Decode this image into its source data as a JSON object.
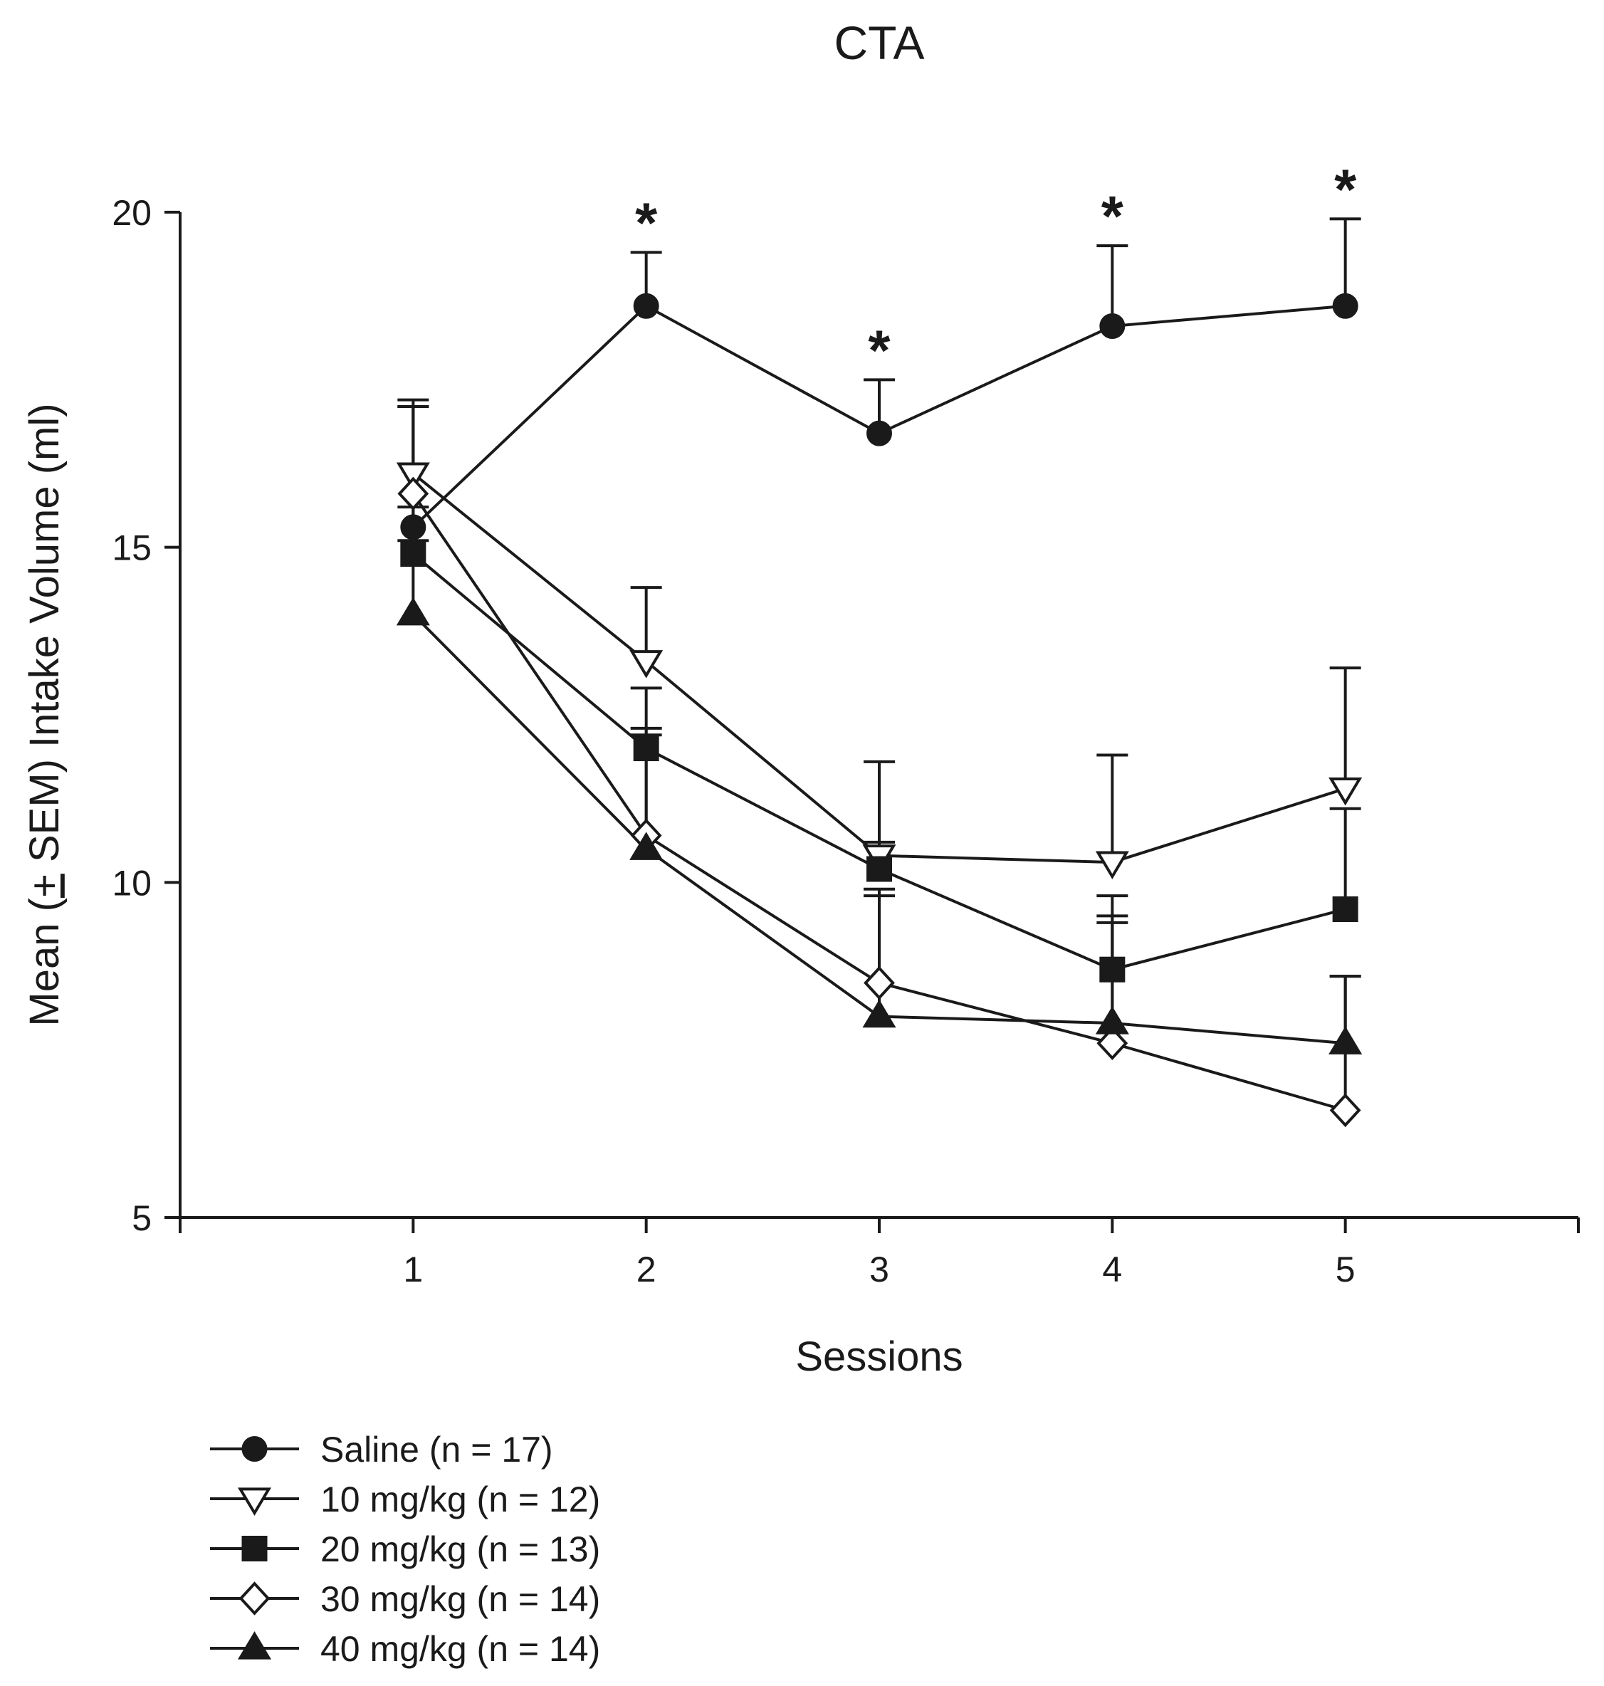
{
  "chart_data": {
    "type": "line",
    "title": "CTA",
    "xlabel": "Sessions",
    "ylabel_parts": [
      "Mean (",
      "+",
      " SEM) Intake Volume (ml)"
    ],
    "x": [
      1,
      2,
      3,
      4,
      5
    ],
    "x_ticks": [
      "1",
      "2",
      "3",
      "4",
      "5"
    ],
    "xlim": [
      0,
      6
    ],
    "y_ticks": [
      "5",
      "10",
      "15",
      "20"
    ],
    "ylim": [
      5,
      20
    ],
    "grid": false,
    "legend_position": "bottom-left",
    "series": [
      {
        "name": "Saline (n = 17)",
        "marker": "circle",
        "filled": true,
        "values": [
          15.3,
          18.6,
          16.7,
          18.3,
          18.6
        ],
        "sem": [
          1.8,
          0.8,
          0.8,
          1.2,
          1.3
        ]
      },
      {
        "name": "10 mg/kg (n = 12)",
        "marker": "triangle-down",
        "filled": false,
        "values": [
          16.1,
          13.3,
          10.4,
          10.3,
          11.4
        ],
        "sem": [
          1.1,
          1.1,
          1.4,
          1.6,
          1.8
        ]
      },
      {
        "name": "20 mg/kg (n = 13)",
        "marker": "square",
        "filled": true,
        "values": [
          14.9,
          12.0,
          10.2,
          8.7,
          9.6
        ],
        "sem": [
          0.7,
          0.9,
          0.4,
          1.1,
          1.5
        ]
      },
      {
        "name": "30 mg/kg (n = 14)",
        "marker": "diamond",
        "filled": false,
        "values": [
          15.8,
          10.7,
          8.5,
          7.6,
          6.6
        ],
        "sem": [
          1.3,
          1.5,
          1.3,
          1.8,
          2.0
        ]
      },
      {
        "name": "40 mg/kg (n = 14)",
        "marker": "triangle-up",
        "filled": true,
        "values": [
          14.0,
          10.5,
          8.0,
          7.9,
          7.6
        ],
        "sem": [
          1.1,
          1.8,
          1.9,
          1.6,
          1.0
        ]
      }
    ],
    "annotations": [
      {
        "x": 2,
        "text": "*"
      },
      {
        "x": 3,
        "text": "*"
      },
      {
        "x": 4,
        "text": "*"
      },
      {
        "x": 5,
        "text": "*"
      }
    ]
  }
}
